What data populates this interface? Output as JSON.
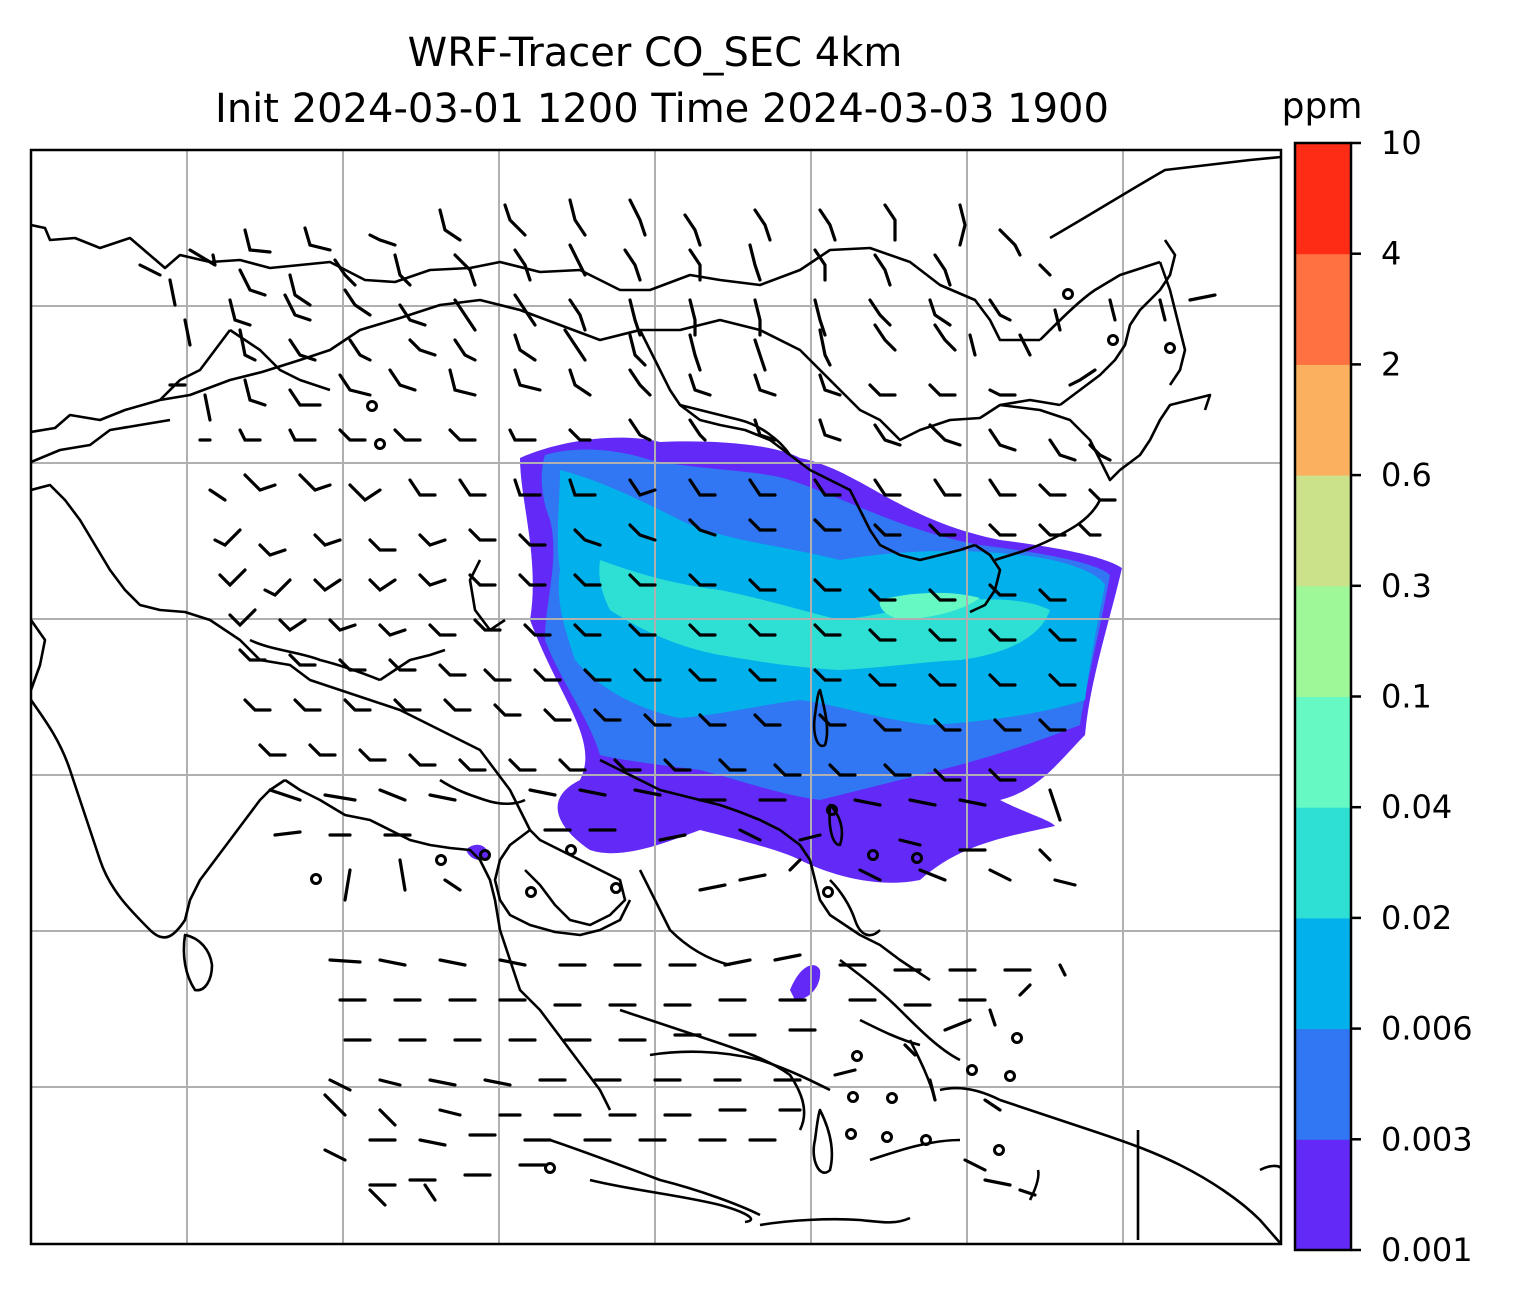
{
  "title": {
    "line1": "WRF-Tracer CO_SEC 4km",
    "line2": "Init 2024-03-01 1200 Time 2024-03-03 1900"
  },
  "colorbar": {
    "unit": "ppm",
    "levels": [
      "0.001",
      "0.003",
      "0.006",
      "0.02",
      "0.04",
      "0.1",
      "0.3",
      "0.6",
      "2",
      "4",
      "10"
    ],
    "colors": [
      "#6329f7",
      "#3176f2",
      "#02b0ec",
      "#2ee0d3",
      "#67f9c3",
      "#9ef898",
      "#cbe18a",
      "#fbb05f",
      "#ff7140",
      "#ff2c15"
    ]
  },
  "map": {
    "field": "CO_SEC tracer concentration",
    "overlays": [
      "coastlines",
      "country-borders",
      "lat-lon-gridlines",
      "wind-barbs"
    ]
  }
}
